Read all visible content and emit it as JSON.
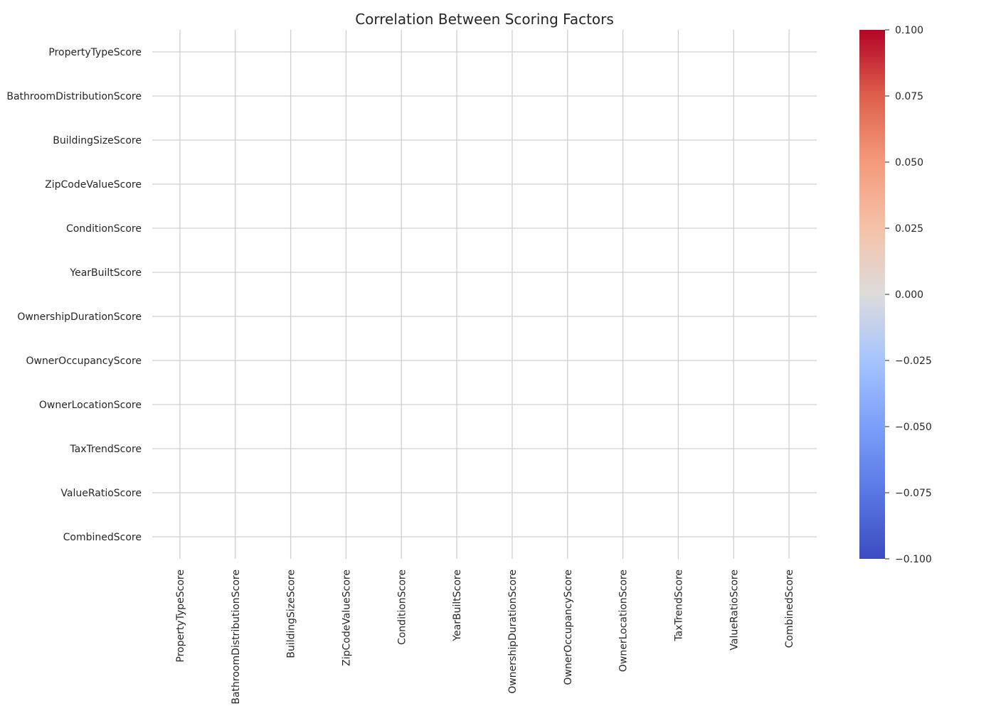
{
  "chart_data": {
    "type": "heatmap",
    "title": "Correlation Between Scoring Factors",
    "x_categories": [
      "PropertyTypeScore",
      "BathroomDistributionScore",
      "BuildingSizeScore",
      "ZipCodeValueScore",
      "ConditionScore",
      "YearBuiltScore",
      "OwnershipDurationScore",
      "OwnerOccupancyScore",
      "OwnerLocationScore",
      "TaxTrendScore",
      "ValueRatioScore",
      "CombinedScore"
    ],
    "y_categories": [
      "PropertyTypeScore",
      "BathroomDistributionScore",
      "BuildingSizeScore",
      "ZipCodeValueScore",
      "ConditionScore",
      "YearBuiltScore",
      "OwnershipDurationScore",
      "OwnerOccupancyScore",
      "OwnerLocationScore",
      "TaxTrendScore",
      "ValueRatioScore",
      "CombinedScore"
    ],
    "values": null,
    "colormap": "coolwarm",
    "colorbar": {
      "range": [
        -0.1,
        0.1
      ],
      "ticks": [
        0.1,
        0.075,
        0.05,
        0.025,
        0.0,
        -0.025,
        -0.05,
        -0.075,
        -0.1
      ],
      "tick_labels": [
        "0.100",
        "0.075",
        "0.050",
        "0.025",
        "0.000",
        "−0.025",
        "−0.050",
        "−0.075",
        "−0.100"
      ]
    },
    "grid": true,
    "cells_empty": true
  }
}
